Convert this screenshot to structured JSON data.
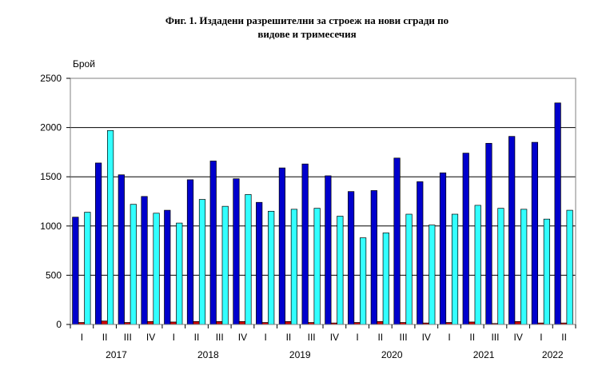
{
  "chart_data": {
    "type": "bar",
    "title_line1": "Фиг. 1. Издадени разрешителни за строеж на нови сгради по",
    "title_line2": "видове и тримесечия",
    "ylabel": "Брой",
    "ylim": [
      0,
      2500
    ],
    "yticks": [
      0,
      500,
      1000,
      1500,
      2000,
      2500
    ],
    "grid": true,
    "categories": [
      "I",
      "II",
      "III",
      "IV",
      "I",
      "II",
      "III",
      "IV",
      "I",
      "II",
      "III",
      "IV",
      "I",
      "II",
      "III",
      "IV",
      "I",
      "II",
      "III",
      "IV",
      "I",
      "II"
    ],
    "years": [
      {
        "label": "2017",
        "quarters": 4
      },
      {
        "label": "2018",
        "quarters": 4
      },
      {
        "label": "2019",
        "quarters": 4
      },
      {
        "label": "2020",
        "quarters": 4
      },
      {
        "label": "2021",
        "quarters": 4
      },
      {
        "label": "2022",
        "quarters": 2
      }
    ],
    "series": [
      {
        "color": "#0000cc",
        "values": [
          1090,
          1640,
          1520,
          1300,
          1160,
          1470,
          1660,
          1480,
          1240,
          1590,
          1630,
          1510,
          1350,
          1360,
          1690,
          1450,
          1540,
          1740,
          1840,
          1910,
          1850,
          2250
        ]
      },
      {
        "color": "#cc0000",
        "values": [
          20,
          35,
          20,
          30,
          25,
          30,
          30,
          30,
          20,
          30,
          20,
          15,
          20,
          30,
          20,
          15,
          20,
          25,
          10,
          30,
          15,
          15
        ]
      },
      {
        "color": "#33ffff",
        "values": [
          1140,
          1970,
          1220,
          1130,
          1030,
          1270,
          1200,
          1320,
          1150,
          1170,
          1180,
          1100,
          880,
          930,
          1120,
          1010,
          1120,
          1210,
          1180,
          1170,
          1070,
          1160
        ]
      }
    ]
  }
}
